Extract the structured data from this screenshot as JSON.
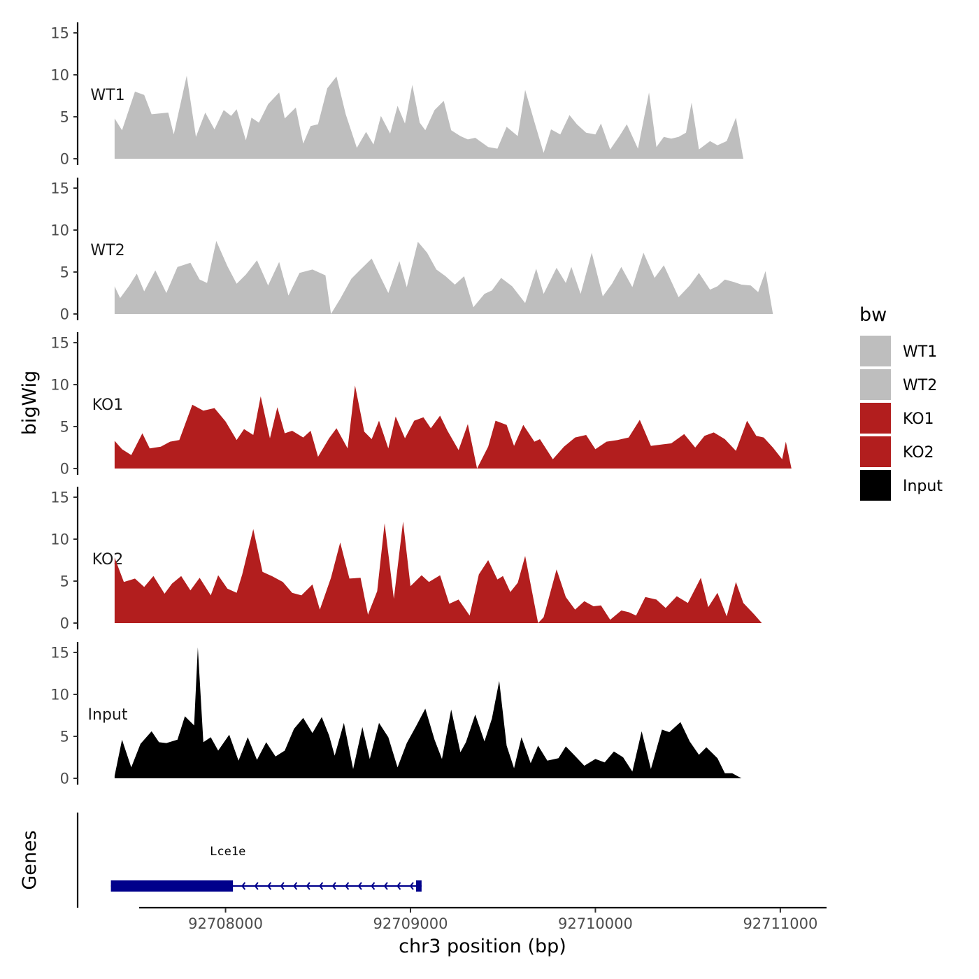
{
  "chart_data": {
    "type": "area",
    "ylabel": "bigWig",
    "xlabel": "chr3 position (bp)",
    "ylim": [
      0,
      16
    ],
    "y_ticks": [
      0,
      5,
      10,
      15
    ],
    "xlim": [
      92707200,
      92711250
    ],
    "x_ticks": [
      92708000,
      92709000,
      92710000,
      92711000
    ],
    "x_tick_labels": [
      "92708000",
      "92709000",
      "92710000",
      "92711000"
    ],
    "legend": {
      "title": "bw",
      "position": "right",
      "entries": [
        {
          "label": "WT1",
          "color": "#bebebe"
        },
        {
          "label": "WT2",
          "color": "#bebebe"
        },
        {
          "label": "KO1",
          "color": "#b21e1e"
        },
        {
          "label": "KO2",
          "color": "#b21e1e"
        },
        {
          "label": "Input",
          "color": "#000000"
        }
      ]
    },
    "series": [
      {
        "name": "WT1",
        "color": "#bebebe",
        "x": [
          92707400,
          92707440,
          92707510,
          92707560,
          92707600,
          92707690,
          92707720,
          92707790,
          92707840,
          92707890,
          92707940,
          92707990,
          92708030,
          92708060,
          92708110,
          92708140,
          92708180,
          92708230,
          92708290,
          92708320,
          92708380,
          92708420,
          92708460,
          92708500,
          92708550,
          92708600,
          92708650,
          92708710,
          92708760,
          92708800,
          92708840,
          92708890,
          92708930,
          92708970,
          92709010,
          92709050,
          92709080,
          92709130,
          92709180,
          92709220,
          92709270,
          92709310,
          92709350,
          92709420,
          92709470,
          92709520,
          92709580,
          92709620,
          92709670,
          92709720,
          92709760,
          92709810,
          92709860,
          92709900,
          92709950,
          92710000,
          92710030,
          92710080,
          92710130,
          92710170,
          92710230,
          92710290,
          92710330,
          92710370,
          92710410,
          92710450,
          92710490,
          92710520,
          92710560,
          92710620,
          92710660,
          92710710,
          92710760,
          92710800,
          92710840,
          92710880,
          92710920,
          92710960,
          92711000,
          92711030,
          92711050,
          92711060
        ],
        "values": [
          4.8,
          3.4,
          8,
          7.6,
          5.3,
          5.5,
          2.9,
          9.9,
          2.6,
          5.5,
          3.5,
          5.8,
          5.1,
          5.9,
          2.2,
          4.9,
          4.3,
          6.5,
          7.9,
          4.8,
          6.1,
          1.8,
          3.9,
          4.1,
          8.4,
          9.8,
          5.3,
          1.3,
          3.2,
          1.7,
          5.1,
          3,
          6.3,
          4.2,
          8.8,
          4.3,
          3.4,
          5.8,
          6.9,
          3.4,
          2.7,
          2.3,
          2.5,
          1.4,
          1.2,
          3.8,
          2.7,
          8.2,
          4.4,
          0.7,
          3.5,
          2.9,
          5.2,
          4.1,
          3.1,
          2.9,
          4.2,
          1.1,
          2.7,
          4.1,
          1.2,
          7.9,
          1.4,
          2.6,
          2.4,
          2.6,
          3.1,
          6.7,
          1.1,
          2.1,
          1.6,
          2.1,
          4.9,
          0,
          0,
          0,
          0,
          0,
          0,
          0,
          0,
          0
        ]
      },
      {
        "name": "WT2",
        "color": "#bebebe",
        "x": [
          92707400,
          92707430,
          92707480,
          92707520,
          92707560,
          92707620,
          92707680,
          92707740,
          92707810,
          92707860,
          92707900,
          92707950,
          92708010,
          92708060,
          92708110,
          92708170,
          92708230,
          92708290,
          92708340,
          92708400,
          92708470,
          92708540,
          92708570,
          92708620,
          92708680,
          92708730,
          92708790,
          92708840,
          92708880,
          92708940,
          92708980,
          92709040,
          92709090,
          92709140,
          92709190,
          92709240,
          92709290,
          92709340,
          92709400,
          92709440,
          92709490,
          92709550,
          92709620,
          92709680,
          92709720,
          92709790,
          92709840,
          92709870,
          92709920,
          92709980,
          92710040,
          92710090,
          92710140,
          92710200,
          92710260,
          92710320,
          92710370,
          92710410,
          92710450,
          92710510,
          92710560,
          92710620,
          92710660,
          92710700,
          92710750,
          92710790,
          92710840,
          92710880,
          92710920,
          92710960,
          92711000,
          92711030,
          92711050
        ],
        "values": [
          3.3,
          1.9,
          3.4,
          4.8,
          2.7,
          5.2,
          2.5,
          5.6,
          6.1,
          4.1,
          3.7,
          8.7,
          5.7,
          3.6,
          4.7,
          6.4,
          3.4,
          6.2,
          2.2,
          4.9,
          5.3,
          4.6,
          0,
          1.8,
          4.2,
          5.3,
          6.6,
          4.3,
          2.5,
          6.3,
          3.2,
          8.6,
          7.3,
          5.3,
          4.5,
          3.5,
          4.5,
          0.8,
          2.4,
          2.8,
          4.3,
          3.3,
          1.3,
          5.4,
          2.4,
          5.5,
          3.7,
          5.6,
          2.4,
          7.3,
          2.1,
          3.6,
          5.6,
          3.2,
          7.3,
          4.3,
          5.8,
          3.9,
          2,
          3.4,
          4.9,
          2.9,
          3.3,
          4.1,
          3.8,
          3.5,
          3.4,
          2.6,
          5.1,
          0,
          0,
          0,
          0
        ]
      },
      {
        "name": "KO1",
        "color": "#b21e1e",
        "x": [
          92707400,
          92707440,
          92707490,
          92707550,
          92707590,
          92707650,
          92707700,
          92707750,
          92707820,
          92707880,
          92707940,
          92708000,
          92708060,
          92708100,
          92708150,
          92708190,
          92708240,
          92708280,
          92708320,
          92708360,
          92708420,
          92708460,
          92708500,
          92708560,
          92708600,
          92708660,
          92708700,
          92708750,
          92708790,
          92708830,
          92708880,
          92708920,
          92708970,
          92709020,
          92709070,
          92709110,
          92709160,
          92709200,
          92709260,
          92709310,
          92709360,
          92709420,
          92709460,
          92709520,
          92709560,
          92709610,
          92709670,
          92709700,
          92709770,
          92709830,
          92709890,
          92709950,
          92710000,
          92710060,
          92710120,
          92710180,
          92710240,
          92710300,
          92710370,
          92710410,
          92710480,
          92710540,
          92710590,
          92710640,
          92710700,
          92710760,
          92710820,
          92710870,
          92710910,
          92710960,
          92711010,
          92711030,
          92711060
        ],
        "values": [
          3.3,
          2.3,
          1.6,
          4.2,
          2.4,
          2.6,
          3.2,
          3.4,
          7.6,
          6.9,
          7.2,
          5.6,
          3.4,
          4.7,
          4,
          8.6,
          3.6,
          7.3,
          4.2,
          4.5,
          3.7,
          4.5,
          1.4,
          3.6,
          4.8,
          2.4,
          9.9,
          4.4,
          3.5,
          5.7,
          2.4,
          6.2,
          3.6,
          5.7,
          6.1,
          4.8,
          6.3,
          4.5,
          2.2,
          5.3,
          0,
          2.6,
          5.7,
          5.2,
          2.7,
          5.2,
          3.2,
          3.5,
          1.1,
          2.6,
          3.7,
          4,
          2.3,
          3.2,
          3.4,
          3.7,
          5.8,
          2.7,
          2.9,
          3,
          4.1,
          2.5,
          3.9,
          4.3,
          3.5,
          2.1,
          5.7,
          3.9,
          3.7,
          2.5,
          1.1,
          3.2,
          0
        ]
      },
      {
        "name": "KO2",
        "color": "#b21e1e",
        "x": [
          92707400,
          92707450,
          92707510,
          92707560,
          92707610,
          92707670,
          92707710,
          92707760,
          92707810,
          92707860,
          92707920,
          92707960,
          92708010,
          92708060,
          92708090,
          92708150,
          92708200,
          92708250,
          92708310,
          92708360,
          92708410,
          92708470,
          92708510,
          92708570,
          92708620,
          92708670,
          92708730,
          92708770,
          92708820,
          92708860,
          92708910,
          92708960,
          92709000,
          92709060,
          92709100,
          92709160,
          92709210,
          92709260,
          92709320,
          92709370,
          92709420,
          92709470,
          92709500,
          92709540,
          92709580,
          92709620,
          92709690,
          92709720,
          92709790,
          92709840,
          92709890,
          92709940,
          92709990,
          92710030,
          92710080,
          92710140,
          92710180,
          92710220,
          92710270,
          92710330,
          92710380,
          92710440,
          92710500,
          92710570,
          92710610,
          92710660,
          92710710,
          92710760,
          92710800,
          92710860,
          92710900,
          92710950,
          92711000,
          92711040,
          92711060
        ],
        "values": [
          7.8,
          4.9,
          5.3,
          4.3,
          5.6,
          3.5,
          4.7,
          5.6,
          3.9,
          5.4,
          3.3,
          5.7,
          4.1,
          3.6,
          5.8,
          11.2,
          6.1,
          5.6,
          4.9,
          3.6,
          3.3,
          4.6,
          1.6,
          5.4,
          9.6,
          5.3,
          5.4,
          1,
          3.8,
          11.9,
          2.9,
          12.1,
          4.4,
          5.7,
          4.9,
          5.7,
          2.3,
          2.8,
          0.9,
          5.8,
          7.5,
          5.2,
          5.6,
          3.7,
          4.8,
          8,
          0,
          0.7,
          6.4,
          3.1,
          1.6,
          2.6,
          2,
          2.1,
          0.4,
          1.5,
          1.3,
          0.9,
          3.1,
          2.8,
          1.8,
          3.2,
          2.4,
          5.4,
          1.9,
          3.6,
          0.8,
          4.9,
          2.4,
          1,
          0,
          0,
          0,
          0,
          0
        ]
      },
      {
        "name": "Input",
        "color": "#000000",
        "x": [
          92707400,
          92707440,
          92707490,
          92707540,
          92707600,
          92707640,
          92707680,
          92707740,
          92707780,
          92707830,
          92707850,
          92707880,
          92707920,
          92707960,
          92708020,
          92708070,
          92708120,
          92708170,
          92708220,
          92708270,
          92708320,
          92708370,
          92708420,
          92708470,
          92708520,
          92708560,
          92708590,
          92708640,
          92708690,
          92708740,
          92708780,
          92708830,
          92708880,
          92708930,
          92708980,
          92709030,
          92709080,
          92709130,
          92709170,
          92709220,
          92709270,
          92709300,
          92709350,
          92709400,
          92709440,
          92709480,
          92709520,
          92709560,
          92709600,
          92709650,
          92709690,
          92709740,
          92709800,
          92709840,
          92709880,
          92709940,
          92710000,
          92710050,
          92710100,
          92710150,
          92710200,
          92710250,
          92710300,
          92710360,
          92710400,
          92710460,
          92710510,
          92710560,
          92710600,
          92710660,
          92710700,
          92710740,
          92710790,
          92710840,
          92710880,
          92710930,
          92710970,
          92711010,
          92711050
        ],
        "values": [
          0.3,
          4.6,
          1.3,
          4.1,
          5.6,
          4.3,
          4.2,
          4.6,
          7.4,
          6.3,
          15.6,
          4.3,
          4.9,
          3.3,
          5.2,
          2.1,
          4.9,
          2.2,
          4.3,
          2.6,
          3.3,
          5.9,
          7.2,
          5.4,
          7.3,
          5.1,
          2.7,
          6.6,
          1.1,
          6.1,
          2.3,
          6.6,
          4.9,
          1.3,
          4.2,
          6.2,
          8.3,
          4.6,
          2.3,
          8.2,
          3.1,
          4.3,
          7.6,
          4.4,
          7.1,
          11.6,
          3.9,
          1.2,
          4.9,
          1.8,
          3.9,
          2.1,
          2.4,
          3.8,
          2.9,
          1.5,
          2.3,
          1.9,
          3.2,
          2.5,
          0.8,
          5.6,
          1.1,
          5.8,
          5.5,
          6.7,
          4.4,
          2.8,
          3.7,
          2.4,
          0.6,
          0.6,
          0,
          0,
          0,
          0,
          0,
          0,
          0
        ]
      }
    ],
    "gene_track": {
      "ylabel": "Genes",
      "gene": "Lce1e",
      "strand": "-",
      "start": 92707380,
      "end": 92709060,
      "exons": [
        [
          92707380,
          92708040
        ],
        [
          92709030,
          92709060
        ]
      ],
      "color": "#00008b"
    }
  }
}
